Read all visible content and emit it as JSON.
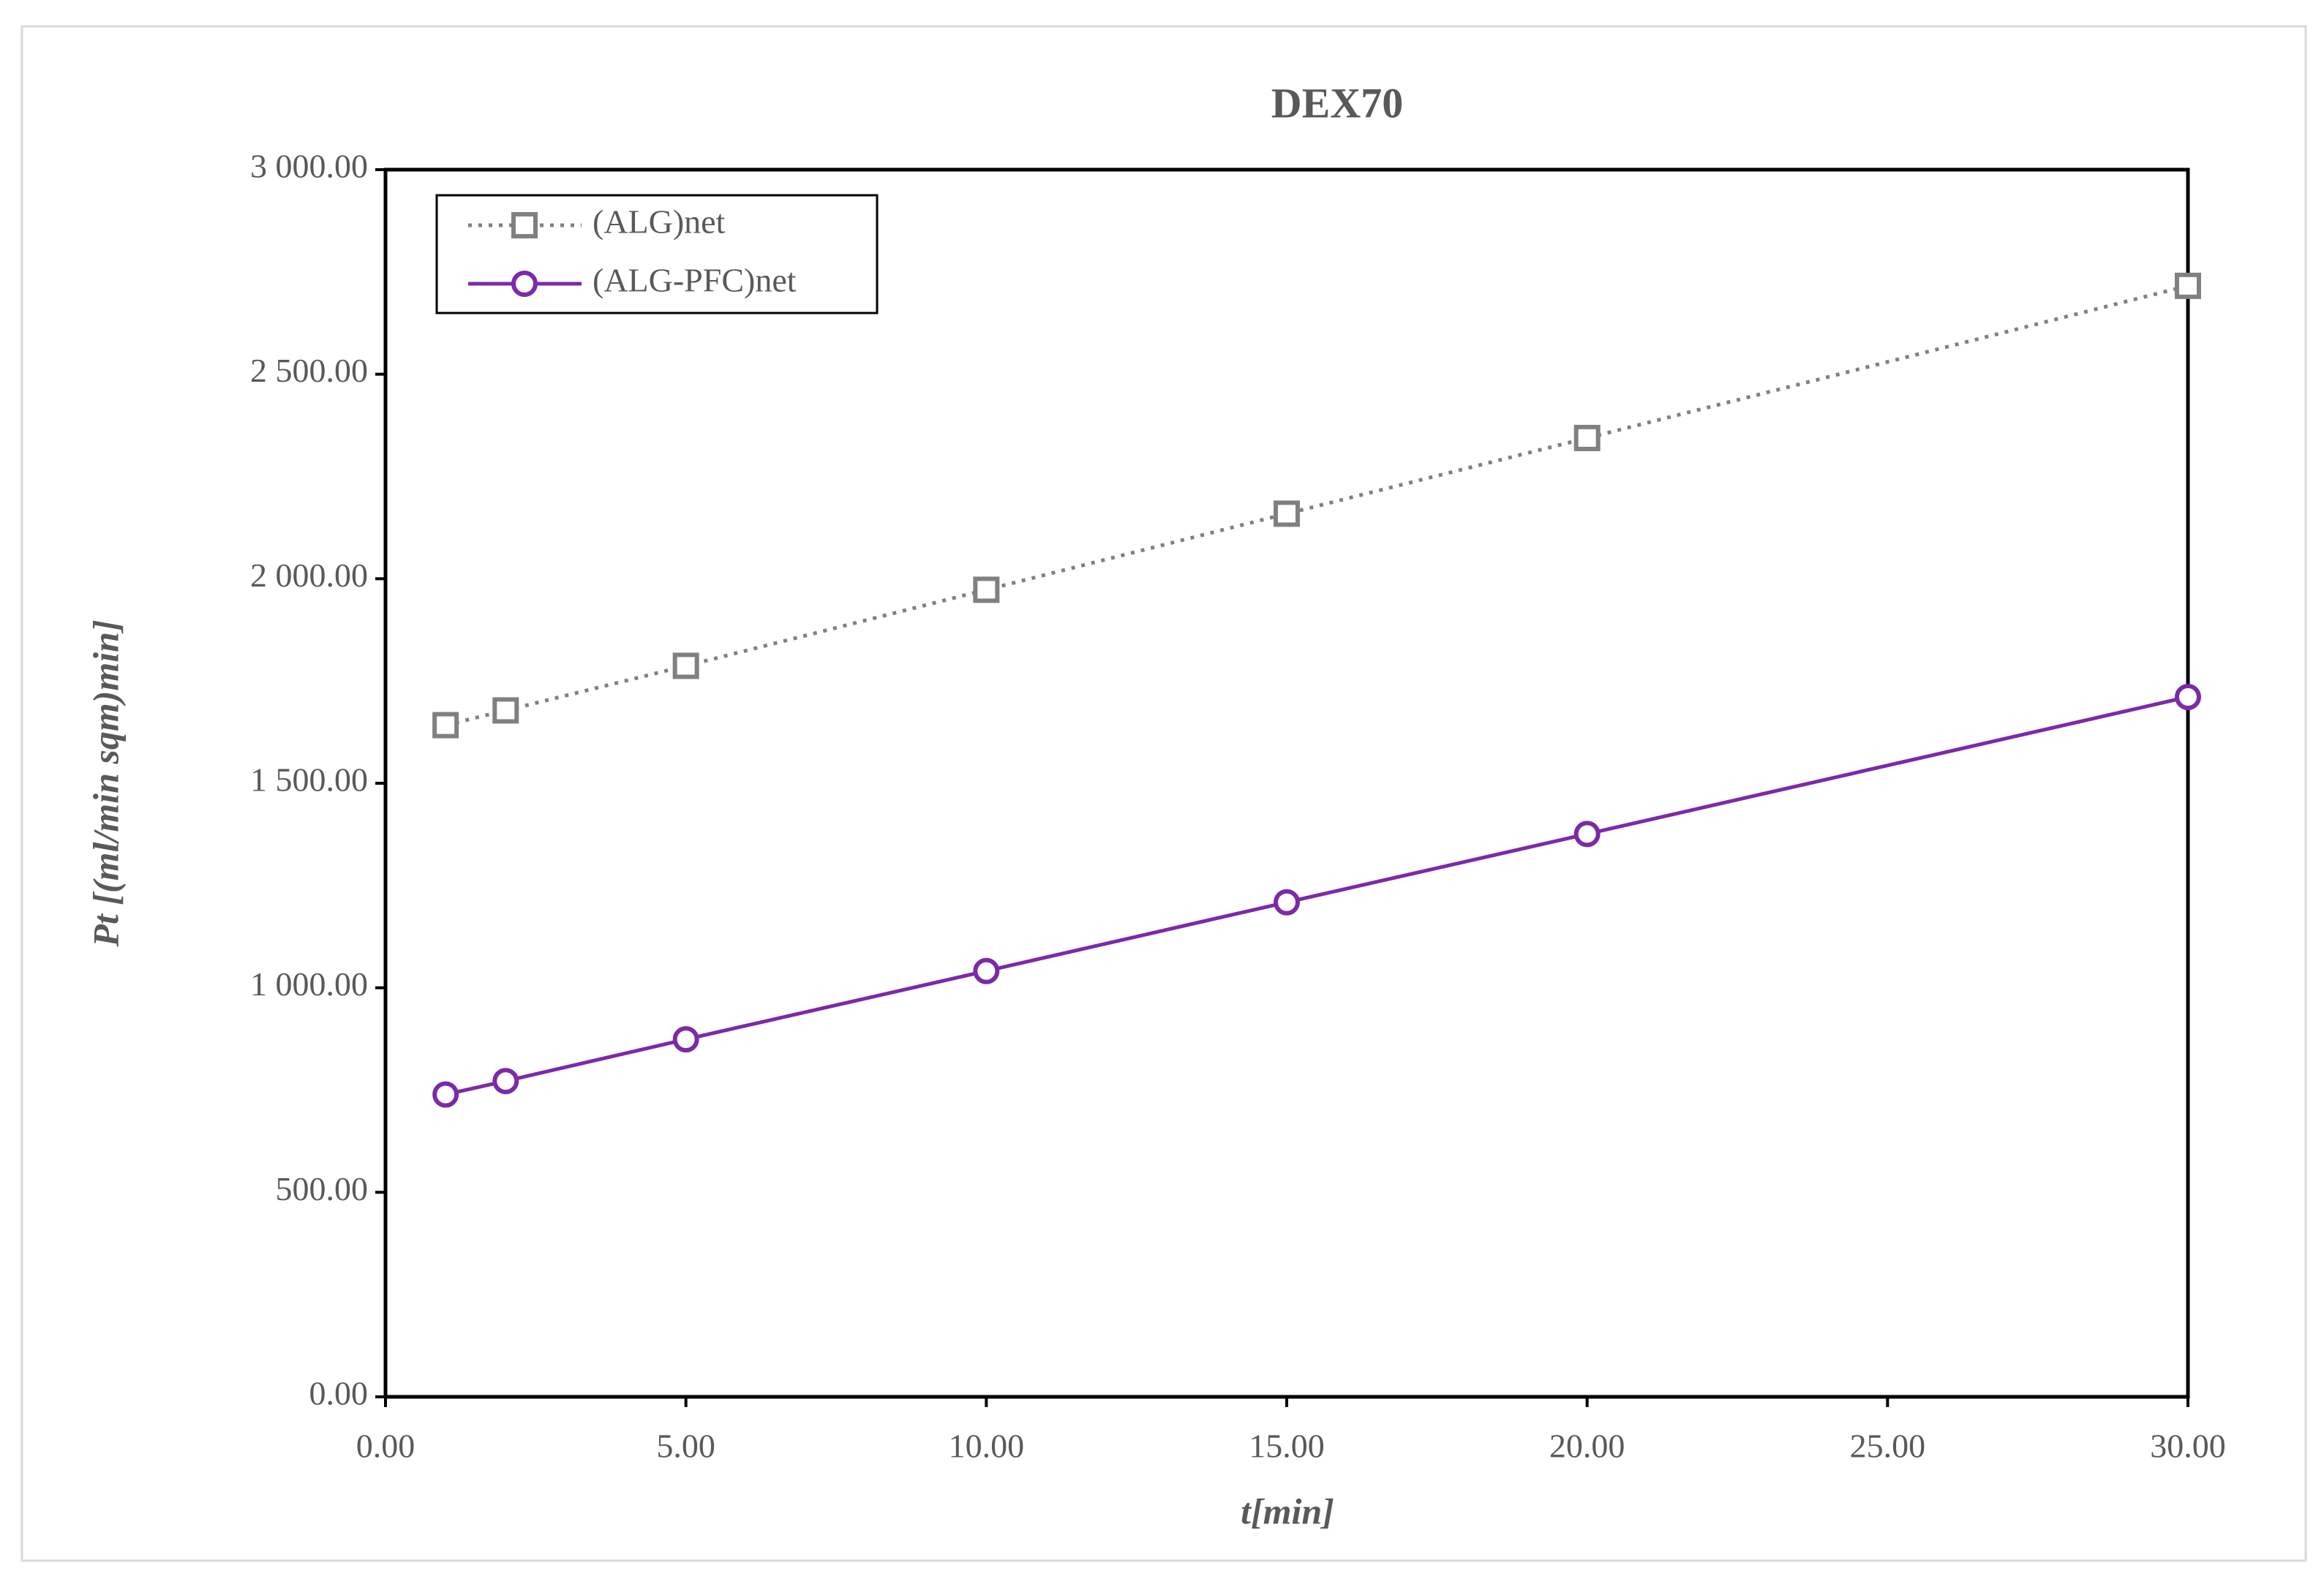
{
  "chart_data": {
    "type": "line",
    "title": "DEX70",
    "x_label": "t[min]",
    "y_label": "Pt [(ml/min sqm)min]",
    "x": [
      1,
      2,
      5,
      10,
      15,
      20,
      30
    ],
    "series": [
      {
        "name": "(ALG)net",
        "color": "#808080",
        "line_style": "dotted",
        "marker": "square",
        "values": [
          1642,
          1678,
          1787,
          1973,
          2159,
          2344,
          2716
        ]
      },
      {
        "name": "(ALG-PFC)net",
        "color": "#7b2aa8",
        "line_style": "solid",
        "marker": "circle",
        "values": [
          739,
          772,
          874,
          1041,
          1209,
          1376,
          1711
        ]
      }
    ],
    "xlim": [
      0,
      30
    ],
    "xticks": [
      {
        "value": 0,
        "label": "0.00"
      },
      {
        "value": 5,
        "label": "5.00"
      },
      {
        "value": 10,
        "label": "10.00"
      },
      {
        "value": 15,
        "label": "15.00"
      },
      {
        "value": 20,
        "label": "20.00"
      },
      {
        "value": 25,
        "label": "25.00"
      },
      {
        "value": 30,
        "label": "30.00"
      }
    ],
    "ylim": [
      0,
      3000
    ],
    "yticks": [
      {
        "value": 0,
        "label": "0.00"
      },
      {
        "value": 500,
        "label": "500.00"
      },
      {
        "value": 1000,
        "label": "1 000.00"
      },
      {
        "value": 1500,
        "label": "1 500.00"
      },
      {
        "value": 2000,
        "label": "2 000.00"
      },
      {
        "value": 2500,
        "label": "2 500.00"
      },
      {
        "value": 3000,
        "label": "3 000.00"
      }
    ],
    "grid": false,
    "legend": "upper left"
  }
}
